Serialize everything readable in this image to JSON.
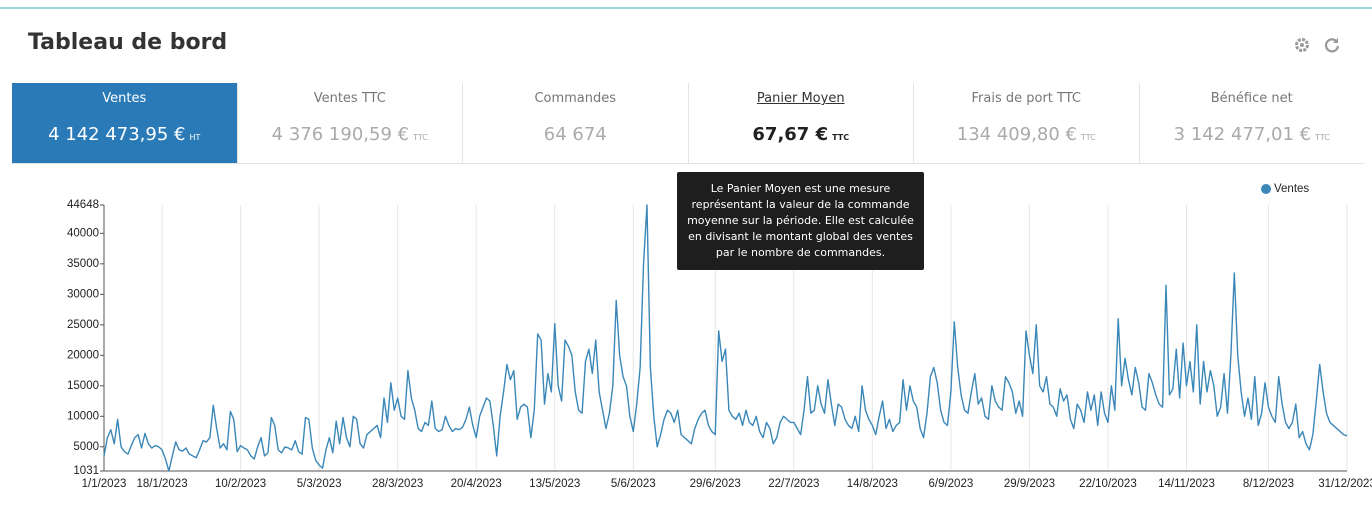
{
  "header": {
    "title": "Tableau de bord"
  },
  "tabs": [
    {
      "label": "Ventes",
      "value": "4 142 473,95 €",
      "unit": "HT"
    },
    {
      "label": "Ventes TTC",
      "value": "4 376 190,59 €",
      "unit": "TTC"
    },
    {
      "label": "Commandes",
      "value": "64 674"
    },
    {
      "label": "Panier Moyen",
      "value": "67,67 €",
      "unit": "TTC"
    },
    {
      "label": "Frais de port TTC",
      "value": "134 409,80 €",
      "unit": "TTC"
    },
    {
      "label": "Bénéfice net",
      "value": "3 142 477,01 €",
      "unit": "TTC"
    }
  ],
  "tooltip": {
    "text": "Le Panier Moyen est une mesure représentant la valeur de la commande moyenne sur la période. Elle est calculée en divisant le montant global des ventes par le nombre de commandes."
  },
  "chart_data": {
    "type": "line",
    "categories": [
      "1/1/2023",
      null,
      null,
      null,
      null,
      null,
      null,
      null,
      null,
      null,
      null,
      null,
      null,
      null,
      null,
      null,
      null,
      "18/1/2023",
      null,
      null,
      null,
      null,
      null,
      null,
      null,
      null,
      null,
      null,
      null,
      null,
      null,
      null,
      null,
      null,
      null,
      null,
      null,
      null,
      null,
      null,
      "10/2/2023",
      null,
      null,
      null,
      null,
      null,
      null,
      null,
      null,
      null,
      null,
      null,
      null,
      null,
      null,
      null,
      null,
      null,
      null,
      null,
      null,
      null,
      null,
      "5/3/2023",
      null,
      null,
      null,
      null,
      null,
      null,
      null,
      null,
      null,
      null,
      null,
      null,
      null,
      null,
      null,
      null,
      null,
      null,
      null,
      null,
      null,
      null,
      "28/3/2023",
      null,
      null,
      null,
      null,
      null,
      null,
      null,
      null,
      null,
      null,
      null,
      null,
      null,
      null,
      null,
      null,
      null,
      null,
      null,
      null,
      null,
      null,
      "20/4/2023",
      null,
      null,
      null,
      null,
      null,
      null,
      null,
      null,
      null,
      null,
      null,
      null,
      null,
      null,
      null,
      null,
      null,
      null,
      null,
      null,
      null,
      null,
      "13/5/2023",
      null,
      null,
      null,
      null,
      null,
      null,
      null,
      null,
      null,
      null,
      null,
      null,
      null,
      null,
      null,
      null,
      null,
      null,
      null,
      null,
      null,
      null,
      "5/6/2023",
      null,
      null,
      null,
      null,
      null,
      null,
      null,
      null,
      null,
      null,
      null,
      null,
      null,
      null,
      null,
      null,
      null,
      null,
      null,
      null,
      null,
      null,
      null,
      "29/6/2023",
      null,
      null,
      null,
      null,
      null,
      null,
      null,
      null,
      null,
      null,
      null,
      null,
      null,
      null,
      null,
      null,
      null,
      null,
      null,
      null,
      null,
      null,
      "22/7/2023",
      null,
      null,
      null,
      null,
      null,
      null,
      null,
      null,
      null,
      null,
      null,
      null,
      null,
      null,
      null,
      null,
      null,
      null,
      null,
      null,
      null,
      null,
      "14/8/2023",
      null,
      null,
      null,
      null,
      null,
      null,
      null,
      null,
      null,
      null,
      null,
      null,
      null,
      null,
      null,
      null,
      null,
      null,
      null,
      null,
      null,
      null,
      "6/9/2023",
      null,
      null,
      null,
      null,
      null,
      null,
      null,
      null,
      null,
      null,
      null,
      null,
      null,
      null,
      null,
      null,
      null,
      null,
      null,
      null,
      null,
      null,
      "29/9/2023",
      null,
      null,
      null,
      null,
      null,
      null,
      null,
      null,
      null,
      null,
      null,
      null,
      null,
      null,
      null,
      null,
      null,
      null,
      null,
      null,
      null,
      null,
      "22/10/2023",
      null,
      null,
      null,
      null,
      null,
      null,
      null,
      null,
      null,
      null,
      null,
      null,
      null,
      null,
      null,
      null,
      null,
      null,
      null,
      null,
      null,
      null,
      "14/11/2023",
      null,
      null,
      null,
      null,
      null,
      null,
      null,
      null,
      null,
      null,
      null,
      null,
      null,
      null,
      null,
      null,
      null,
      null,
      null,
      null,
      null,
      null,
      null,
      "8/12/2023",
      null,
      null,
      null,
      null,
      null,
      null,
      null,
      null,
      null,
      null,
      null,
      null,
      null,
      null,
      null,
      null,
      null,
      null,
      null,
      null,
      null,
      null,
      "31/12/2023"
    ],
    "series": [
      {
        "name": "Ventes",
        "color": "#3a87b8",
        "values": [
          3500,
          6500,
          7800,
          5500,
          9500,
          5000,
          4200,
          3800,
          5200,
          6500,
          7000,
          4800,
          7200,
          5500,
          4800,
          5200,
          5000,
          4500,
          3000,
          1031,
          3500,
          5800,
          4500,
          4300,
          4800,
          3800,
          3500,
          3200,
          4500,
          6000,
          5800,
          6500,
          11800,
          8000,
          4800,
          5500,
          4500,
          10800,
          9500,
          4200,
          5200,
          4800,
          4500,
          3500,
          3000,
          5000,
          6500,
          3500,
          4000,
          9800,
          8500,
          4500,
          4000,
          5000,
          4800,
          4500,
          6000,
          4200,
          3800,
          9800,
          9500,
          4800,
          2800,
          2000,
          1500,
          4500,
          6500,
          4000,
          9200,
          5500,
          9800,
          6500,
          5000,
          10000,
          9500,
          5500,
          4800,
          7000,
          7500,
          8000,
          8500,
          6500,
          13000,
          9000,
          15500,
          11000,
          13000,
          10000,
          9500,
          17500,
          13000,
          11000,
          8000,
          7500,
          9000,
          8500,
          12500,
          8000,
          7500,
          7800,
          10000,
          8500,
          7500,
          8000,
          7800,
          8200,
          9500,
          11500,
          8500,
          6500,
          10000,
          11500,
          13000,
          12500,
          8500,
          3500,
          10000,
          14000,
          18500,
          16000,
          17500,
          9500,
          11500,
          12000,
          11500,
          6500,
          11000,
          23500,
          22500,
          12000,
          17000,
          14000,
          25200,
          15000,
          12500,
          22500,
          21500,
          20000,
          14000,
          11000,
          10500,
          19000,
          21000,
          17000,
          22500,
          14000,
          11000,
          8000,
          10500,
          15000,
          29000,
          20000,
          16500,
          15000,
          10000,
          7500,
          12000,
          18000,
          35000,
          44648,
          18000,
          10000,
          5000,
          7000,
          9500,
          11000,
          10500,
          9000,
          11000,
          7000,
          6500,
          6000,
          5500,
          8000,
          9500,
          10500,
          11000,
          8500,
          7500,
          7000,
          24000,
          19000,
          21000,
          11000,
          10000,
          9500,
          10500,
          8500,
          11000,
          9000,
          8500,
          10000,
          7500,
          6500,
          9000,
          8000,
          5500,
          6500,
          9000,
          10000,
          9500,
          9000,
          9000,
          8000,
          7000,
          11000,
          16500,
          10500,
          11000,
          15000,
          12000,
          10500,
          16000,
          12000,
          8500,
          12000,
          11500,
          9500,
          8500,
          8000,
          10000,
          7500,
          15000,
          11000,
          9500,
          8500,
          7000,
          10000,
          12500,
          8000,
          9500,
          7500,
          8500,
          9000,
          16000,
          11000,
          15000,
          12500,
          11500,
          8000,
          6500,
          10500,
          16500,
          18000,
          15500,
          11000,
          9000,
          8500,
          14000,
          25500,
          18000,
          13500,
          11000,
          10500,
          14000,
          17000,
          12000,
          13000,
          10000,
          9500,
          15000,
          12500,
          11500,
          11000,
          16500,
          15500,
          14000,
          10500,
          12500,
          10000,
          24000,
          20000,
          17000,
          25000,
          15000,
          14000,
          16500,
          12000,
          11500,
          10000,
          14500,
          12500,
          13500,
          9500,
          8000,
          12000,
          11000,
          9000,
          14000,
          11000,
          13500,
          8500,
          14000,
          10500,
          9000,
          15000,
          11000,
          26000,
          15000,
          19500,
          16000,
          13500,
          18000,
          15500,
          11500,
          11000,
          17000,
          15500,
          13500,
          12000,
          11500,
          31500,
          13500,
          14500,
          21000,
          13000,
          22000,
          15000,
          19000,
          14000,
          25000,
          12000,
          19000,
          14000,
          17500,
          15000,
          10000,
          11500,
          17000,
          10500,
          20000,
          33500,
          20000,
          14000,
          10000,
          13000,
          9500,
          16500,
          8500,
          10500,
          15500,
          11500,
          10000,
          9000,
          16500,
          12000,
          9000,
          8000,
          9000,
          12000,
          6500,
          7500,
          5500,
          4500,
          7000,
          12500,
          18500,
          14000,
          10500,
          9000,
          8500,
          8000,
          7500,
          7000,
          6800
        ]
      }
    ],
    "ylim": [
      1031,
      44648
    ],
    "yticks": [
      1031,
      5000,
      10000,
      15000,
      20000,
      25000,
      30000,
      35000,
      40000,
      44648
    ],
    "grid": true,
    "legend": "top-right"
  }
}
